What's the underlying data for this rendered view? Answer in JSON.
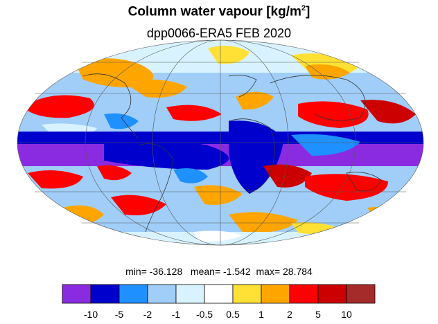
{
  "title": "Column water vapour [kg/m",
  "title_sup": "2",
  "title_tail": "]",
  "subtitle": "dpp0066-ERA5  FEB 2020",
  "stats": {
    "min_label": "min=",
    "min": "-36.128",
    "mean_label": "mean=",
    "mean": "-1.542",
    "max_label": "max=",
    "max": "28.784"
  },
  "colorbar": {
    "colors": [
      "#8a2be2",
      "#0000cd",
      "#1e90ff",
      "#a0cef9",
      "#d8f3ff",
      "#ffffff",
      "#ffe135",
      "#ffa500",
      "#ff0000",
      "#cc0000",
      "#a52a2a"
    ],
    "tick_labels": [
      "-10",
      "-5",
      "-2",
      "-1",
      "-0.5",
      "0.5",
      "1",
      "2",
      "5",
      "10"
    ]
  },
  "map": {
    "projection": "mollweide",
    "field": "column water vapour difference",
    "meridian_spacing_deg": 60,
    "parallel_spacing_deg": 30
  }
}
